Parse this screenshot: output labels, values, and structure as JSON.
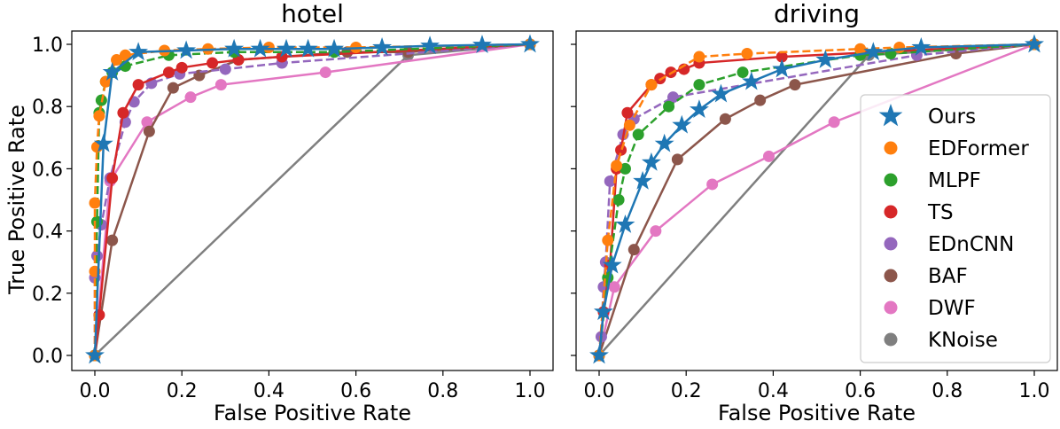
{
  "chart_data": {
    "type": "line",
    "ylabel": "True Positive Rate",
    "xlabel": "False Positive Rate",
    "xlim": [
      0,
      1
    ],
    "ylim": [
      0,
      1
    ],
    "ticks": [
      "0.0",
      "0.2",
      "0.4",
      "0.6",
      "0.8",
      "1.0"
    ],
    "legend": {
      "location": "lower-right of driving panel",
      "entries": [
        {
          "name": "Ours",
          "marker": "star",
          "color": "#1f77b4"
        },
        {
          "name": "EDFormer",
          "marker": "circle",
          "color": "#ff7f0e"
        },
        {
          "name": "MLPF",
          "marker": "circle",
          "color": "#2ca02c"
        },
        {
          "name": "TS",
          "marker": "circle",
          "color": "#d62728"
        },
        {
          "name": "EDnCNN",
          "marker": "circle",
          "color": "#9467bd"
        },
        {
          "name": "BAF",
          "marker": "circle",
          "color": "#8c564b"
        },
        {
          "name": "DWF",
          "marker": "circle",
          "color": "#e377c2"
        },
        {
          "name": "KNoise",
          "marker": "circle",
          "color": "#7f7f7f"
        }
      ]
    },
    "panels": [
      {
        "title": "hotel",
        "series": [
          {
            "name": "KNoise",
            "color": "#7f7f7f",
            "dash": "solid",
            "marker": "circle",
            "points": [
              [
                0.0,
                0.0
              ],
              [
                0.72,
                0.965
              ],
              [
                1.0,
                1.0
              ]
            ]
          },
          {
            "name": "DWF",
            "color": "#e377c2",
            "dash": "solid",
            "marker": "circle",
            "points": [
              [
                0.0,
                0.0
              ],
              [
                0.035,
                0.56
              ],
              [
                0.12,
                0.75
              ],
              [
                0.22,
                0.83
              ],
              [
                0.29,
                0.87
              ],
              [
                0.53,
                0.91
              ],
              [
                1.0,
                1.0
              ]
            ]
          },
          {
            "name": "BAF",
            "color": "#8c564b",
            "dash": "solid",
            "marker": "circle",
            "points": [
              [
                0.0,
                0.0
              ],
              [
                0.04,
                0.37
              ],
              [
                0.125,
                0.72
              ],
              [
                0.18,
                0.86
              ],
              [
                0.24,
                0.9
              ],
              [
                0.33,
                0.95
              ],
              [
                0.58,
                0.975
              ],
              [
                0.72,
                0.975
              ],
              [
                1.0,
                1.0
              ]
            ]
          },
          {
            "name": "EDnCNN",
            "color": "#9467bd",
            "dash": "dashed",
            "marker": "circle",
            "points": [
              [
                0.0,
                0.0
              ],
              [
                0.0,
                0.25
              ],
              [
                0.005,
                0.32
              ],
              [
                0.015,
                0.42
              ],
              [
                0.035,
                0.57
              ],
              [
                0.07,
                0.75
              ],
              [
                0.09,
                0.815
              ],
              [
                0.13,
                0.875
              ],
              [
                0.195,
                0.905
              ],
              [
                0.3,
                0.92
              ],
              [
                0.43,
                0.94
              ],
              [
                1.0,
                1.0
              ]
            ]
          },
          {
            "name": "TS",
            "color": "#d62728",
            "dash": "solid",
            "marker": "circle",
            "points": [
              [
                0.0,
                0.0
              ],
              [
                0.01,
                0.13
              ],
              [
                0.04,
                0.57
              ],
              [
                0.065,
                0.78
              ],
              [
                0.1,
                0.87
              ],
              [
                0.17,
                0.91
              ],
              [
                0.2,
                0.925
              ],
              [
                0.27,
                0.94
              ],
              [
                0.33,
                0.95
              ],
              [
                0.43,
                0.96
              ],
              [
                1.0,
                1.0
              ]
            ]
          },
          {
            "name": "MLPF",
            "color": "#2ca02c",
            "dash": "dashed",
            "marker": "circle",
            "points": [
              [
                0.0,
                0.0
              ],
              [
                0.005,
                0.43
              ],
              [
                0.01,
                0.78
              ],
              [
                0.015,
                0.82
              ],
              [
                0.025,
                0.88
              ],
              [
                0.04,
                0.91
              ],
              [
                0.07,
                0.93
              ],
              [
                0.17,
                0.965
              ],
              [
                0.32,
                0.975
              ],
              [
                0.55,
                0.975
              ],
              [
                1.0,
                1.0
              ]
            ]
          },
          {
            "name": "EDFormer",
            "color": "#ff7f0e",
            "dash": "dashed",
            "marker": "circle",
            "points": [
              [
                0.0,
                0.0
              ],
              [
                0.0,
                0.27
              ],
              [
                0.0,
                0.49
              ],
              [
                0.005,
                0.67
              ],
              [
                0.01,
                0.77
              ],
              [
                0.025,
                0.88
              ],
              [
                0.05,
                0.95
              ],
              [
                0.07,
                0.965
              ],
              [
                0.16,
                0.98
              ],
              [
                0.26,
                0.985
              ],
              [
                0.4,
                0.99
              ],
              [
                0.6,
                0.99
              ],
              [
                1.0,
                1.0
              ]
            ]
          },
          {
            "name": "Ours",
            "color": "#1f77b4",
            "dash": "solid",
            "marker": "star",
            "points": [
              [
                0.0,
                0.0
              ],
              [
                0.02,
                0.68
              ],
              [
                0.04,
                0.91
              ],
              [
                0.1,
                0.975
              ],
              [
                0.21,
                0.98
              ],
              [
                0.32,
                0.985
              ],
              [
                0.38,
                0.985
              ],
              [
                0.44,
                0.985
              ],
              [
                0.49,
                0.985
              ],
              [
                0.55,
                0.985
              ],
              [
                0.66,
                0.99
              ],
              [
                0.77,
                0.995
              ],
              [
                0.89,
                0.998
              ],
              [
                1.0,
                1.0
              ]
            ]
          }
        ]
      },
      {
        "title": "driving",
        "series": [
          {
            "name": "KNoise",
            "color": "#7f7f7f",
            "dash": "solid",
            "marker": "circle",
            "points": [
              [
                0.0,
                0.0
              ],
              [
                0.62,
                0.965
              ],
              [
                1.0,
                1.0
              ]
            ]
          },
          {
            "name": "DWF",
            "color": "#e377c2",
            "dash": "solid",
            "marker": "circle",
            "points": [
              [
                0.0,
                0.0
              ],
              [
                0.035,
                0.22
              ],
              [
                0.13,
                0.4
              ],
              [
                0.26,
                0.55
              ],
              [
                0.39,
                0.64
              ],
              [
                0.54,
                0.75
              ],
              [
                1.0,
                1.0
              ]
            ]
          },
          {
            "name": "BAF",
            "color": "#8c564b",
            "dash": "solid",
            "marker": "circle",
            "points": [
              [
                0.0,
                0.0
              ],
              [
                0.08,
                0.34
              ],
              [
                0.18,
                0.63
              ],
              [
                0.29,
                0.76
              ],
              [
                0.37,
                0.82
              ],
              [
                0.45,
                0.87
              ],
              [
                0.82,
                0.97
              ],
              [
                1.0,
                1.0
              ]
            ]
          },
          {
            "name": "EDnCNN",
            "color": "#9467bd",
            "dash": "dashed",
            "marker": "circle",
            "points": [
              [
                0.0,
                0.0
              ],
              [
                0.005,
                0.06
              ],
              [
                0.01,
                0.22
              ],
              [
                0.015,
                0.3
              ],
              [
                0.025,
                0.56
              ],
              [
                0.055,
                0.71
              ],
              [
                0.08,
                0.76
              ],
              [
                0.17,
                0.83
              ],
              [
                0.73,
                0.965
              ],
              [
                1.0,
                1.0
              ]
            ]
          },
          {
            "name": "TS",
            "color": "#d62728",
            "dash": "solid",
            "marker": "circle",
            "points": [
              [
                0.0,
                0.0
              ],
              [
                0.01,
                0.14
              ],
              [
                0.025,
                0.29
              ],
              [
                0.04,
                0.6
              ],
              [
                0.05,
                0.66
              ],
              [
                0.065,
                0.78
              ],
              [
                0.12,
                0.87
              ],
              [
                0.14,
                0.89
              ],
              [
                0.165,
                0.91
              ],
              [
                0.195,
                0.92
              ],
              [
                0.23,
                0.94
              ],
              [
                0.42,
                0.96
              ],
              [
                1.0,
                1.0
              ]
            ]
          },
          {
            "name": "MLPF",
            "color": "#2ca02c",
            "dash": "dashed",
            "marker": "circle",
            "points": [
              [
                0.0,
                0.0
              ],
              [
                0.02,
                0.25
              ],
              [
                0.045,
                0.5
              ],
              [
                0.06,
                0.6
              ],
              [
                0.09,
                0.71
              ],
              [
                0.16,
                0.8
              ],
              [
                0.23,
                0.87
              ],
              [
                0.33,
                0.91
              ],
              [
                0.6,
                0.965
              ],
              [
                0.67,
                0.97
              ],
              [
                1.0,
                1.0
              ]
            ]
          },
          {
            "name": "EDFormer",
            "color": "#ff7f0e",
            "dash": "dashed",
            "marker": "circle",
            "points": [
              [
                0.0,
                0.0
              ],
              [
                0.02,
                0.37
              ],
              [
                0.04,
                0.61
              ],
              [
                0.07,
                0.74
              ],
              [
                0.12,
                0.87
              ],
              [
                0.23,
                0.96
              ],
              [
                0.34,
                0.97
              ],
              [
                0.6,
                0.985
              ],
              [
                0.69,
                0.99
              ],
              [
                1.0,
                1.0
              ]
            ]
          },
          {
            "name": "Ours",
            "color": "#1f77b4",
            "dash": "solid",
            "marker": "star",
            "points": [
              [
                0.0,
                0.0
              ],
              [
                0.01,
                0.14
              ],
              [
                0.03,
                0.29
              ],
              [
                0.06,
                0.42
              ],
              [
                0.1,
                0.56
              ],
              [
                0.12,
                0.62
              ],
              [
                0.15,
                0.68
              ],
              [
                0.19,
                0.74
              ],
              [
                0.23,
                0.79
              ],
              [
                0.28,
                0.84
              ],
              [
                0.35,
                0.88
              ],
              [
                0.42,
                0.92
              ],
              [
                0.52,
                0.95
              ],
              [
                0.63,
                0.975
              ],
              [
                0.74,
                0.99
              ],
              [
                1.0,
                1.0
              ]
            ]
          }
        ]
      }
    ]
  }
}
